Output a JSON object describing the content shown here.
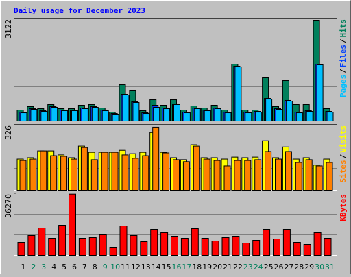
{
  "chart_data": [
    {
      "type": "bar",
      "title": "Daily usage for December 2023",
      "categories": [
        "1",
        "2",
        "3",
        "4",
        "5",
        "6",
        "7",
        "8",
        "9",
        "10",
        "11",
        "12",
        "13",
        "14",
        "15",
        "16",
        "17",
        "18",
        "19",
        "20",
        "21",
        "22",
        "23",
        "24",
        "25",
        "26",
        "27",
        "28",
        "29",
        "30",
        "31"
      ],
      "category_colors": [
        "#000000",
        "#00805c",
        "#00805c",
        "#000000",
        "#000000",
        "#000000",
        "#000000",
        "#000000",
        "#00805c",
        "#00805c",
        "#000000",
        "#000000",
        "#000000",
        "#000000",
        "#000000",
        "#00805c",
        "#00805c",
        "#000000",
        "#000000",
        "#000000",
        "#000000",
        "#000000",
        "#00805c",
        "#00805c",
        "#000000",
        "#000000",
        "#000000",
        "#000000",
        "#000000",
        "#00805c",
        "#00805c"
      ],
      "legend_separator": "/",
      "ylim": [
        0,
        3122
      ],
      "yticks": [
        3122
      ],
      "grid": true,
      "series": [
        {
          "name": "Hits",
          "color": "#00805c",
          "values": [
            335,
            440,
            377,
            503,
            377,
            377,
            482,
            503,
            398,
            272,
            1110,
            943,
            314,
            649,
            482,
            649,
            335,
            461,
            398,
            482,
            335,
            1739,
            335,
            335,
            1320,
            440,
            1236,
            503,
            503,
            3080,
            377
          ]
        },
        {
          "name": "Files",
          "color": "#0040ff",
          "values": [
            272,
            377,
            314,
            440,
            335,
            335,
            398,
            440,
            335,
            230,
            817,
            587,
            251,
            482,
            398,
            524,
            272,
            398,
            335,
            398,
            272,
            1676,
            272,
            293,
            691,
            377,
            629,
            272,
            314,
            1739,
            293
          ]
        },
        {
          "name": "Pages",
          "color": "#00c0ff",
          "values": [
            251,
            356,
            293,
            419,
            314,
            314,
            377,
            419,
            314,
            209,
            796,
            566,
            230,
            419,
            377,
            503,
            251,
            377,
            314,
            377,
            251,
            1655,
            251,
            272,
            670,
            356,
            608,
            251,
            293,
            1718,
            272
          ]
        }
      ]
    },
    {
      "type": "bar",
      "ylim": [
        0,
        326
      ],
      "yticks": [
        326
      ],
      "grid": true,
      "series": [
        {
          "name": "Visits",
          "color": "#ffff00",
          "values": [
            156,
            163,
            197,
            197,
            177,
            163,
            221,
            190,
            190,
            190,
            200,
            183,
            190,
            289,
            190,
            163,
            153,
            228,
            163,
            163,
            156,
            166,
            163,
            166,
            248,
            163,
            217,
            156,
            163,
            126,
            156
          ]
        },
        {
          "name": "Sites",
          "color": "#ff8000",
          "values": [
            149,
            156,
            197,
            173,
            170,
            156,
            214,
            153,
            190,
            190,
            177,
            160,
            173,
            316,
            187,
            153,
            143,
            221,
            156,
            149,
            122,
            149,
            149,
            153,
            194,
            156,
            194,
            139,
            153,
            122,
            139
          ]
        }
      ]
    },
    {
      "type": "bar",
      "ylim": [
        0,
        36270
      ],
      "yticks": [
        36270
      ],
      "grid": true,
      "series": [
        {
          "name": "KBytes",
          "color": "#ff0000",
          "values": [
            7657,
            11687,
            16120,
            10075,
            17732,
            36000,
            10075,
            10478,
            12090,
            4836,
            17329,
            11687,
            8060,
            15314,
            13299,
            11284,
            10075,
            15717,
            10075,
            8463,
            10478,
            11284,
            7254,
            8866,
            15314,
            9672,
            15314,
            7657,
            6448,
            13299,
            10075
          ]
        }
      ]
    }
  ]
}
